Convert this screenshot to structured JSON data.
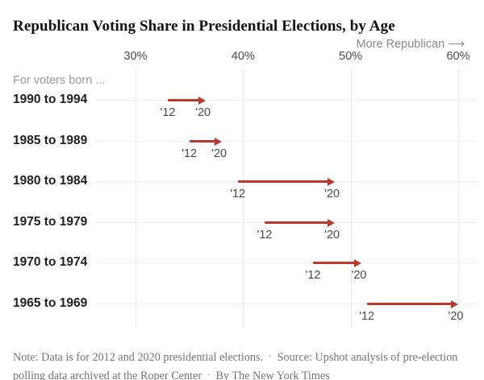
{
  "title": "Republican Voting Share in Presidential Elections, by Age",
  "footer": {
    "note": "Note: Data is for 2012 and 2020 presidential elections.",
    "source": "Source: Upshot analysis of pre-election polling data archived at the Roper Center",
    "byline": "By The New York Times",
    "separator": "•"
  },
  "colors": {
    "arrow_red": "#bb392c",
    "grid_line": "#e9e9e9",
    "row_line": "#efefef",
    "title_text": "#121212",
    "cohort_text": "#212121",
    "muted_text": "#9b9b9b",
    "footer_text": "#757575"
  },
  "chart_data": {
    "type": "scatter",
    "variant": "arrow / dumbbell chart showing change from 2012 to 2020",
    "title": "Republican Voting Share in Presidential Elections, by Age",
    "xlabel": "",
    "ylabel": "",
    "direction_hint": "More Republican ⟶",
    "group_label": "For voters born ...",
    "x_unit": "%",
    "x_ticks": [
      30,
      40,
      50,
      60
    ],
    "x_tick_labels": [
      "30%",
      "40%",
      "50%",
      "60%"
    ],
    "xlim": [
      26.5,
      61.7
    ],
    "grid": "vertical gridlines at ticks, light horizontal line per row",
    "start_label": "'12",
    "end_label": "'20",
    "rows": [
      {
        "cohort": "1990 to 1994",
        "start_2012": 33.0,
        "end_2020": 36.5
      },
      {
        "cohort": "1985 to 1989",
        "start_2012": 35.0,
        "end_2020": 38.0
      },
      {
        "cohort": "1980 to 1984",
        "start_2012": 39.5,
        "end_2020": 48.5
      },
      {
        "cohort": "1975 to 1979",
        "start_2012": 42.0,
        "end_2020": 48.5
      },
      {
        "cohort": "1970 to 1974",
        "start_2012": 46.5,
        "end_2020": 51.0
      },
      {
        "cohort": "1965 to 1969",
        "start_2012": 51.5,
        "end_2020": 60.0
      }
    ]
  }
}
